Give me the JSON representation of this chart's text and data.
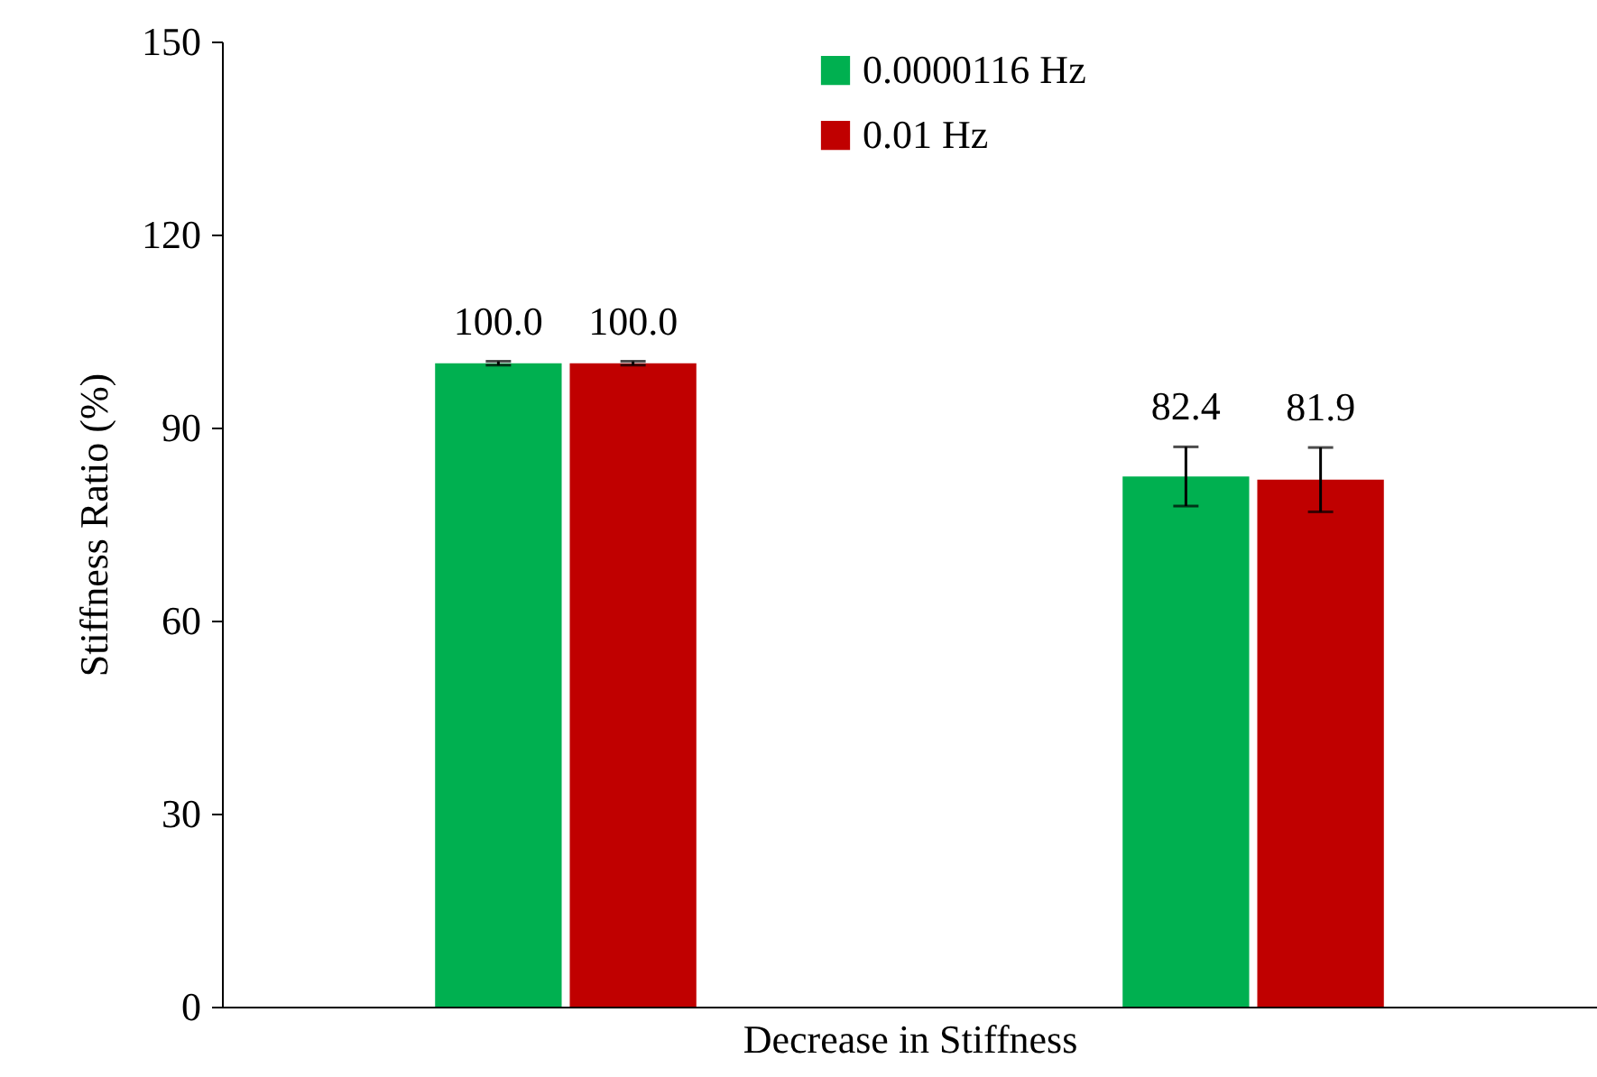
{
  "chart_data": {
    "type": "bar",
    "xlabel": "Decrease in Stiffness",
    "ylabel": "Stiffness Ratio (%)",
    "categories": [
      null,
      null
    ],
    "series": [
      {
        "name": "0.0000116 Hz",
        "color": "#00b050",
        "values": [
          100.0,
          82.4
        ],
        "errors": [
          0.3,
          4.6
        ],
        "value_labels": [
          "100.0",
          "82.4"
        ]
      },
      {
        "name": "0.01 Hz",
        "color": "#c00000",
        "values": [
          100.0,
          81.9
        ],
        "errors": [
          0.3,
          5.0
        ],
        "value_labels": [
          "100.0",
          "81.9"
        ]
      }
    ],
    "ylim": [
      0,
      150
    ],
    "yticks": [
      0,
      30,
      60,
      90,
      120,
      150
    ],
    "grid": false,
    "legend": "top"
  }
}
